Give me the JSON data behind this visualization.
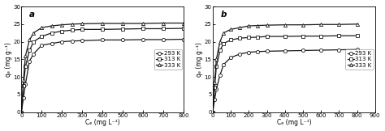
{
  "panel_a": {
    "label": "a",
    "xlabel": "Cₑ (mg L⁻¹)",
    "ylabel": "qₑ (mg g⁻¹)",
    "xlim": [
      0,
      800
    ],
    "ylim": [
      0,
      30
    ],
    "xticks": [
      0,
      100,
      200,
      300,
      400,
      500,
      600,
      700,
      800
    ],
    "yticks": [
      0,
      5,
      10,
      15,
      20,
      25,
      30
    ],
    "series": [
      {
        "label": "293 K",
        "marker": "o",
        "x": [
          0,
          10,
          20,
          40,
          60,
          100,
          150,
          200,
          250,
          300,
          400,
          500,
          600,
          700,
          800
        ],
        "y": [
          0,
          4.0,
          8.0,
          14.5,
          16.5,
          19.0,
          19.5,
          20.0,
          20.2,
          20.3,
          20.5,
          20.5,
          20.6,
          20.6,
          20.7
        ]
      },
      {
        "label": "313 K",
        "marker": "s",
        "x": [
          0,
          10,
          20,
          40,
          60,
          100,
          150,
          200,
          250,
          300,
          400,
          500,
          600,
          700,
          800
        ],
        "y": [
          0,
          7.5,
          13.0,
          17.5,
          20.0,
          21.5,
          22.5,
          23.0,
          23.3,
          23.5,
          23.5,
          23.6,
          23.7,
          23.7,
          23.8
        ]
      },
      {
        "label": "333 K",
        "marker": "^",
        "x": [
          0,
          10,
          20,
          40,
          60,
          100,
          150,
          200,
          250,
          300,
          400,
          500,
          600,
          700,
          800
        ],
        "y": [
          0,
          9.0,
          16.0,
          20.5,
          22.5,
          24.0,
          24.5,
          24.8,
          25.0,
          25.1,
          25.2,
          25.2,
          25.2,
          25.3,
          25.3
        ]
      }
    ]
  },
  "panel_b": {
    "label": "b",
    "xlabel": "Cₑ (mg L⁻¹)",
    "ylabel": "qₑ (mg g⁻¹)",
    "xlim": [
      0,
      900
    ],
    "ylim": [
      0,
      30
    ],
    "xticks": [
      0,
      100,
      200,
      300,
      400,
      500,
      600,
      700,
      800,
      900
    ],
    "yticks": [
      0,
      5,
      10,
      15,
      20,
      25,
      30
    ],
    "series": [
      {
        "label": "293 K",
        "marker": "o",
        "x": [
          0,
          10,
          20,
          40,
          60,
          100,
          150,
          200,
          250,
          300,
          400,
          500,
          600,
          700,
          800
        ],
        "y": [
          0,
          3.5,
          6.5,
          10.5,
          13.5,
          15.5,
          16.5,
          17.0,
          17.2,
          17.3,
          17.4,
          17.5,
          17.6,
          17.7,
          17.8
        ]
      },
      {
        "label": "313 K",
        "marker": "s",
        "x": [
          0,
          10,
          20,
          40,
          60,
          100,
          150,
          200,
          250,
          300,
          400,
          500,
          600,
          700,
          800
        ],
        "y": [
          0,
          7.0,
          13.0,
          17.5,
          19.5,
          20.5,
          21.0,
          21.2,
          21.3,
          21.5,
          21.5,
          21.6,
          21.6,
          21.7,
          21.7
        ]
      },
      {
        "label": "333 K",
        "marker": "^",
        "x": [
          0,
          10,
          20,
          40,
          60,
          100,
          150,
          200,
          250,
          300,
          400,
          500,
          600,
          700,
          800
        ],
        "y": [
          0,
          8.5,
          15.0,
          20.0,
          22.5,
          23.5,
          24.0,
          24.5,
          24.6,
          24.7,
          24.8,
          24.8,
          24.9,
          24.9,
          25.0
        ]
      }
    ]
  },
  "line_color": "#1a1a1a",
  "marker_size": 3.0,
  "line_width": 0.9,
  "legend_fontsize": 5.0,
  "axis_fontsize": 5.5,
  "tick_fontsize": 5.0,
  "label_fontsize": 7.5,
  "label_fontstyle": "italic"
}
